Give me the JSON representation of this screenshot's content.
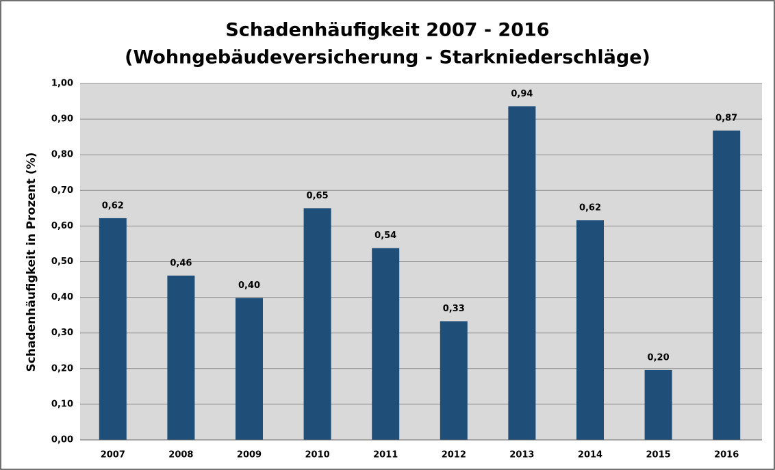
{
  "chart_data": {
    "type": "bar",
    "title": "Schadenhäufigkeit 2007 - 2016",
    "subtitle": "(Wohngebäudeversicherung - Starkniederschläge)",
    "y_label": "Schadenhäufigkeit in Prozent (%)",
    "categories": [
      "2007",
      "2008",
      "2009",
      "2010",
      "2011",
      "2012",
      "2013",
      "2014",
      "2015",
      "2016"
    ],
    "values": [
      0.622,
      0.461,
      0.398,
      0.65,
      0.538,
      0.333,
      0.936,
      0.616,
      0.196,
      0.868
    ],
    "value_labels": [
      "0,62",
      "0,46",
      "0,40",
      "0,65",
      "0,54",
      "0,33",
      "0,94",
      "0,62",
      "0,20",
      "0,87"
    ],
    "color": "#1f4e79",
    "ylim": [
      0,
      1
    ],
    "yticks": [
      {
        "value": 0,
        "label": "0,00"
      },
      {
        "value": 0.1,
        "label": "0,10"
      },
      {
        "value": 0.2,
        "label": "0,20"
      },
      {
        "value": 0.3,
        "label": "0,30"
      },
      {
        "value": 0.4,
        "label": "0,40"
      },
      {
        "value": 0.5,
        "label": "0,50"
      },
      {
        "value": 0.6,
        "label": "0,60"
      },
      {
        "value": 0.7,
        "label": "0,70"
      },
      {
        "value": 0.8,
        "label": "0,80"
      },
      {
        "value": 0.9,
        "label": "0,90"
      },
      {
        "value": 1,
        "label": "1,00"
      }
    ],
    "grid": true
  }
}
